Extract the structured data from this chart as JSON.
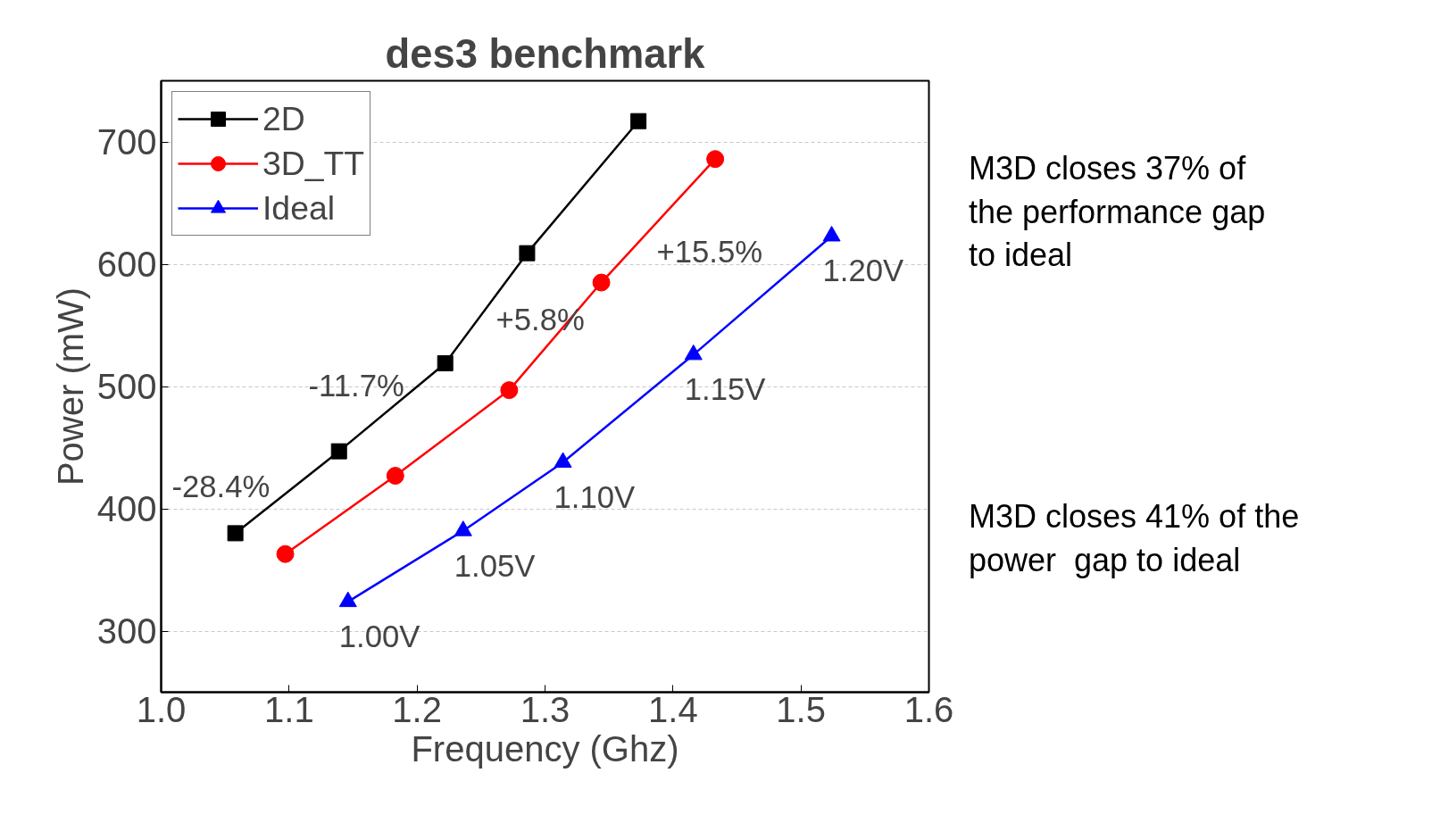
{
  "chart_data": {
    "type": "line",
    "title": "des3 benchmark",
    "xlabel": "Frequency (Ghz)",
    "ylabel": "Power (mW)",
    "xlim": [
      1.0,
      1.6
    ],
    "xticks": [
      {
        "value": 1.0,
        "label": "1.0"
      },
      1.1,
      1.2,
      1.3,
      1.4,
      1.5,
      1.6
    ],
    "ylim": [
      250,
      750
    ],
    "yticks": [
      300,
      400,
      500,
      600,
      700
    ],
    "grid": "y",
    "legend": "top left",
    "line_style": "solid",
    "series": [
      {
        "name": "2D",
        "color": "#000000",
        "marker": "square",
        "x": [
          1.058,
          1.139,
          1.222,
          1.286,
          1.373
        ],
        "values": [
          380,
          447,
          519,
          609,
          717
        ]
      },
      {
        "name": "3D_TT",
        "color": "#ff0000",
        "marker": "circle",
        "x": [
          1.097,
          1.183,
          1.272,
          1.344,
          1.433
        ],
        "values": [
          363,
          427,
          497,
          585,
          686
        ]
      },
      {
        "name": "Ideal",
        "color": "#0000ff",
        "marker": "triangle",
        "x": [
          1.146,
          1.236,
          1.314,
          1.416,
          1.524
        ],
        "values": [
          324,
          382,
          438,
          526,
          623
        ]
      }
    ],
    "annotations": [
      {
        "text": "1.00V",
        "x": 1.146,
        "y": 324
      },
      {
        "text": "1.05V",
        "x": 1.236,
        "y": 382
      },
      {
        "text": "1.10V",
        "x": 1.314,
        "y": 438
      },
      {
        "text": "1.15V",
        "x": 1.416,
        "y": 526
      },
      {
        "text": "1.20V",
        "x": 1.524,
        "y": 623
      },
      "+15.5%",
      "+5.8%",
      "-11.7%",
      "-28.4%",
      "M3D closes 37% of\nthe performance gap\nto ideal",
      "M3D closes 41% of the\npower  gap to ideal"
    ]
  }
}
